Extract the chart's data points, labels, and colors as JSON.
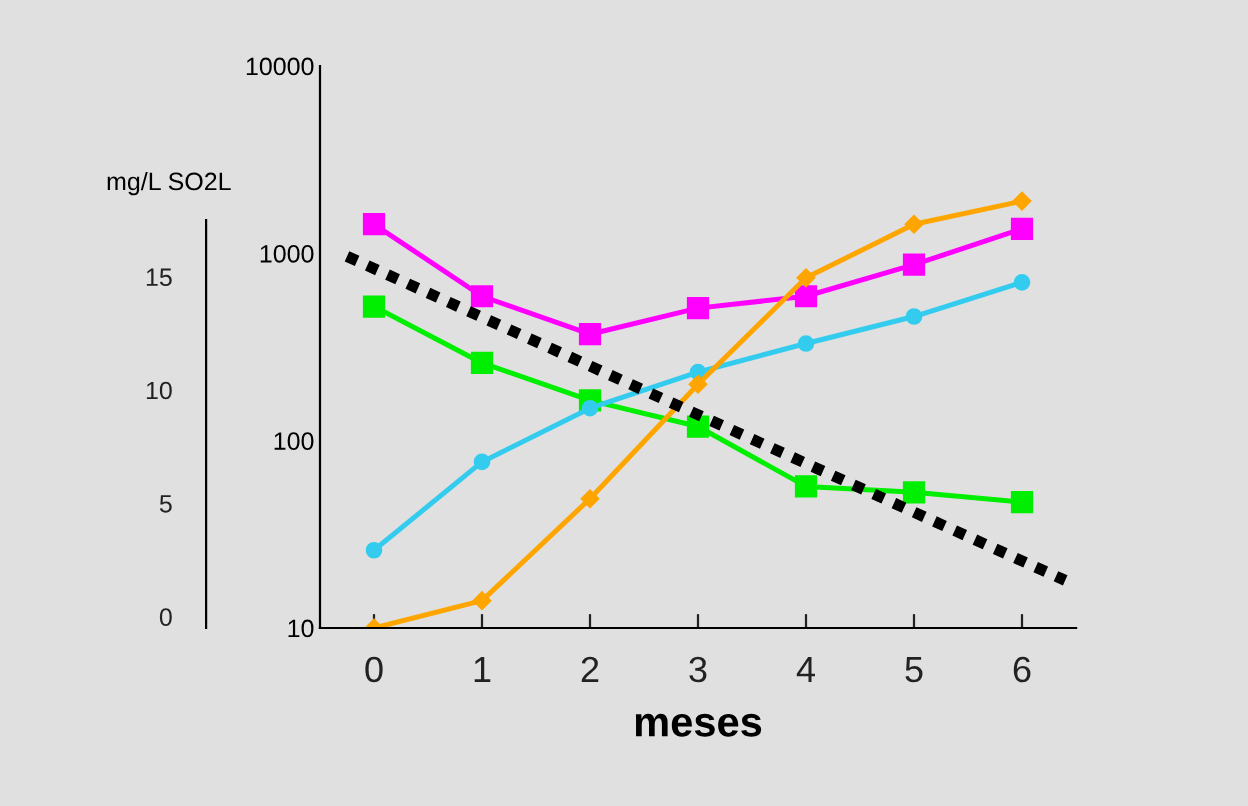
{
  "chart_data": {
    "type": "line",
    "xlabel": "meses",
    "y2label": "mg/L SO2L",
    "x": [
      0,
      1,
      2,
      3,
      4,
      5,
      6
    ],
    "xlim": [
      -0.5,
      6.5
    ],
    "xticks": [
      0,
      1,
      2,
      3,
      4,
      5,
      6
    ],
    "log": "y",
    "ylim": [
      10,
      10000
    ],
    "yticks": [
      10,
      100,
      1000,
      10000
    ],
    "y2lim": [
      -0.5,
      24.3
    ],
    "y2ticks": [
      0,
      5,
      10,
      15
    ],
    "grid": false,
    "series": [
      {
        "color": "#ff00ff",
        "marker": "square",
        "values": [
          1430,
          590,
          370,
          510,
          590,
          870,
          1350
        ]
      },
      {
        "color": "#00ee00",
        "marker": "square",
        "values": [
          520,
          260,
          164,
          119,
          57,
          53,
          47
        ]
      },
      {
        "color": "#33ccee",
        "marker": "circle",
        "values": [
          26,
          77,
          149,
          232,
          330,
          460,
          700
        ]
      },
      {
        "color": "#ffa500",
        "marker": "diamond",
        "values": [
          10,
          14,
          49,
          200,
          740,
          1430,
          1900
        ]
      },
      {
        "type": "line",
        "axis": "y2",
        "color": "#000000",
        "marker": "none",
        "line_style": "dotted",
        "x": [
          -0.25,
          6.4
        ],
        "values": [
          15.9,
          1.6
        ]
      }
    ]
  }
}
